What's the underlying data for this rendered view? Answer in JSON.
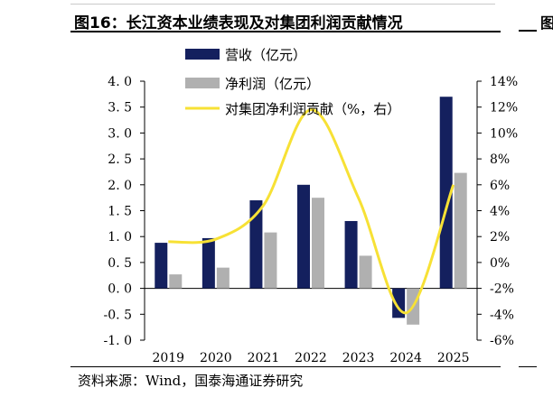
{
  "title": "图16：长江资本业绩表现及对集团利润贡献情况",
  "source": "资料来源：Wind，国泰海通证券研究",
  "colors": {
    "revenue": "#14205e",
    "profit": "#b0b0b0",
    "contribution": "#f7e135"
  },
  "chart_data": {
    "type": "bar",
    "categories": [
      "2019",
      "2020",
      "2021",
      "2022",
      "2023",
      "2024",
      "2025"
    ],
    "series": [
      {
        "name": "营收（亿元）",
        "type": "bar",
        "axis": "left",
        "values": [
          0.88,
          0.97,
          1.7,
          2.0,
          1.3,
          -0.57,
          3.7
        ]
      },
      {
        "name": "净利润（亿元）",
        "type": "bar",
        "axis": "left",
        "values": [
          0.27,
          0.4,
          1.08,
          1.75,
          0.63,
          -0.7,
          2.23
        ]
      },
      {
        "name": "对集团净利润贡献（%，右）",
        "type": "line",
        "axis": "right",
        "values": [
          1.6,
          1.8,
          4.4,
          11.8,
          5.0,
          -3.9,
          6.0
        ]
      }
    ],
    "left_axis": {
      "ylim": [
        -1.0,
        4.0
      ],
      "ticks": [
        "4. 0",
        "3. 5",
        "3. 0",
        "2. 5",
        "2. 0",
        "1. 5",
        "1. 0",
        "0. 5",
        "0. 0",
        "-0. 5",
        "-1. 0"
      ]
    },
    "right_axis": {
      "ylim": [
        -6,
        14
      ],
      "ticks": [
        "14%",
        "12%",
        "10%",
        "8%",
        "6%",
        "4%",
        "2%",
        "0%",
        "-2%",
        "-4%",
        "-6%"
      ]
    },
    "legend": "top-left",
    "grid": false
  }
}
